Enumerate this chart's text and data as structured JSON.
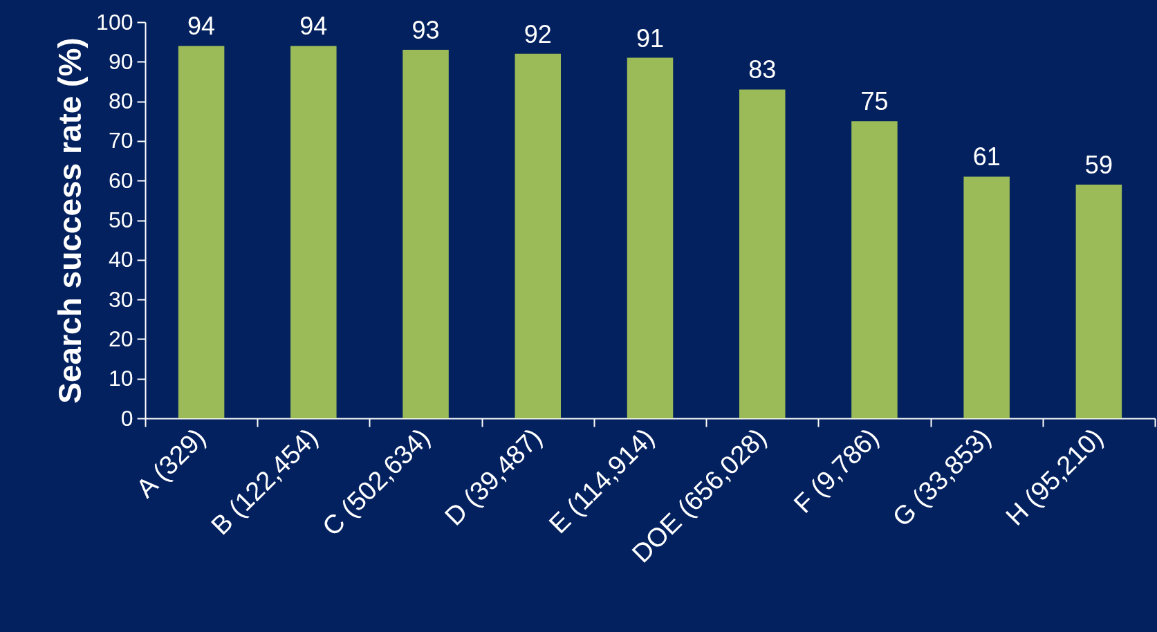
{
  "chart_data": {
    "type": "bar",
    "ylabel": "Search success rate (%)",
    "categories": [
      "A (329)",
      "B (122,454)",
      "C (502,634)",
      "D (39,487)",
      "E (114,914)",
      "DOE (656,028)",
      "F (9,786)",
      "G (33,853)",
      "H (95,210)"
    ],
    "values": [
      94,
      94,
      93,
      92,
      91,
      83,
      75,
      61,
      59
    ],
    "color": "#9bbb59",
    "ylim": [
      0,
      100
    ],
    "yticks": [
      0,
      10,
      20,
      30,
      40,
      50,
      60,
      70,
      80,
      90,
      100
    ],
    "data_labels": true,
    "grid": false
  }
}
